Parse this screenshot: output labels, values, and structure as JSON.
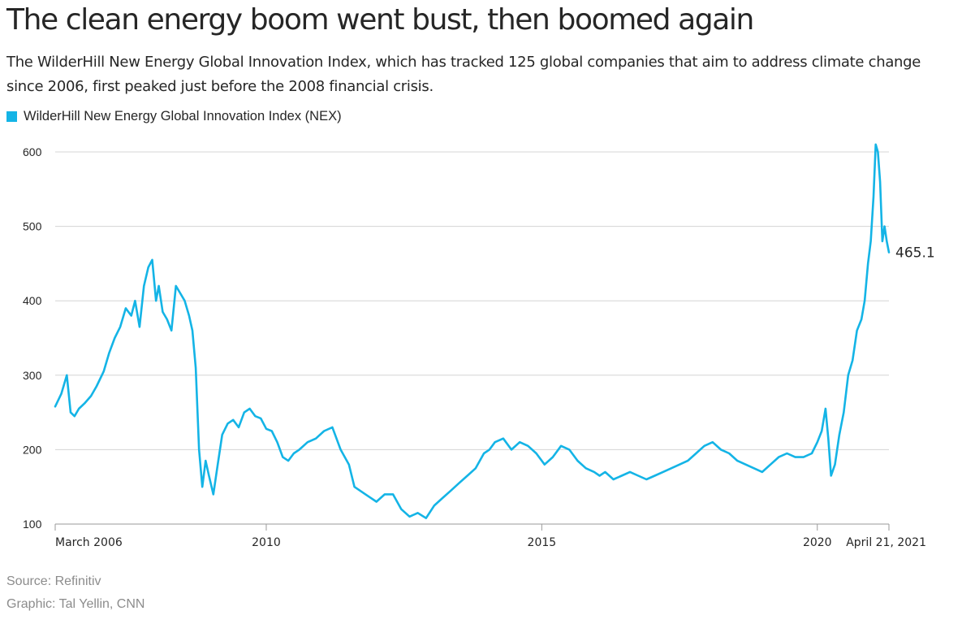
{
  "title": "The clean energy boom went bust, then boomed again",
  "subtitle": "The WilderHill New Energy Global Innovation Index, which has tracked 125 global companies that aim to address climate change since 2006, first peaked just before the 2008 financial crisis.",
  "source": "Source: Refinitiv",
  "credit": "Graphic: Tal Yellin, CNN",
  "colors": {
    "series": "#14b4e6",
    "grid": "#d4d4d4",
    "text": "#262626",
    "muted": "#8c8c8c"
  },
  "chart_data": {
    "type": "line",
    "title": "The clean energy boom went bust, then boomed again",
    "xlabel": "",
    "ylabel": "",
    "xlim": [
      2006.17,
      2021.3
    ],
    "ylim": [
      100,
      620
    ],
    "yticks": [
      100,
      200,
      300,
      400,
      500,
      600
    ],
    "ytick_labels": [
      "100",
      "200",
      "300",
      "400",
      "500",
      "600"
    ],
    "xticks": [
      {
        "value": 2006.17,
        "label": "March 2006"
      },
      {
        "value": 2010.0,
        "label": "2010"
      },
      {
        "value": 2015.0,
        "label": "2015"
      },
      {
        "value": 2020.0,
        "label": "2020"
      },
      {
        "value": 2021.3,
        "label": "April 21, 2021"
      }
    ],
    "grid": true,
    "legend": {
      "position": "top-left",
      "entries": [
        "WilderHill New Energy Global Innovation Index (NEX)"
      ]
    },
    "end_label": "465.1",
    "series": [
      {
        "name": "WilderHill New Energy Global Innovation Index (NEX)",
        "x": [
          2006.17,
          2006.28,
          2006.38,
          2006.45,
          2006.52,
          2006.6,
          2006.7,
          2006.82,
          2006.92,
          2007.05,
          2007.15,
          2007.25,
          2007.35,
          2007.45,
          2007.55,
          2007.62,
          2007.7,
          2007.78,
          2007.86,
          2007.93,
          2008.0,
          2008.05,
          2008.12,
          2008.2,
          2008.28,
          2008.36,
          2008.44,
          2008.52,
          2008.6,
          2008.66,
          2008.72,
          2008.78,
          2008.84,
          2008.9,
          2008.96,
          2009.04,
          2009.12,
          2009.2,
          2009.3,
          2009.4,
          2009.5,
          2009.6,
          2009.7,
          2009.8,
          2009.9,
          2010.0,
          2010.1,
          2010.2,
          2010.3,
          2010.4,
          2010.5,
          2010.6,
          2010.75,
          2010.9,
          2011.05,
          2011.2,
          2011.35,
          2011.5,
          2011.6,
          2011.7,
          2011.8,
          2011.9,
          2012.0,
          2012.15,
          2012.3,
          2012.45,
          2012.6,
          2012.75,
          2012.9,
          2013.05,
          2013.2,
          2013.35,
          2013.5,
          2013.65,
          2013.8,
          2013.95,
          2014.05,
          2014.15,
          2014.3,
          2014.45,
          2014.6,
          2014.75,
          2014.9,
          2015.05,
          2015.2,
          2015.35,
          2015.5,
          2015.65,
          2015.8,
          2015.95,
          2016.05,
          2016.15,
          2016.3,
          2016.45,
          2016.6,
          2016.75,
          2016.9,
          2017.05,
          2017.2,
          2017.35,
          2017.5,
          2017.65,
          2017.8,
          2017.95,
          2018.1,
          2018.25,
          2018.4,
          2018.55,
          2018.7,
          2018.85,
          2019.0,
          2019.15,
          2019.3,
          2019.45,
          2019.6,
          2019.75,
          2019.9,
          2020.0,
          2020.08,
          2020.15,
          2020.2,
          2020.25,
          2020.32,
          2020.4,
          2020.48,
          2020.56,
          2020.64,
          2020.72,
          2020.8,
          2020.86,
          2020.92,
          2020.97,
          2021.02,
          2021.06,
          2021.1,
          2021.14,
          2021.18,
          2021.22,
          2021.26,
          2021.3
        ],
        "values": [
          258,
          275,
          300,
          250,
          245,
          255,
          262,
          272,
          285,
          305,
          330,
          350,
          365,
          390,
          380,
          400,
          365,
          420,
          445,
          455,
          400,
          420,
          385,
          375,
          360,
          420,
          410,
          400,
          380,
          360,
          310,
          200,
          150,
          185,
          165,
          140,
          180,
          220,
          235,
          240,
          230,
          250,
          255,
          245,
          242,
          228,
          225,
          210,
          190,
          185,
          195,
          200,
          210,
          215,
          225,
          230,
          200,
          180,
          150,
          145,
          140,
          135,
          130,
          140,
          140,
          120,
          110,
          115,
          108,
          125,
          135,
          145,
          155,
          165,
          175,
          195,
          200,
          210,
          215,
          200,
          210,
          205,
          195,
          180,
          190,
          205,
          200,
          185,
          175,
          170,
          165,
          170,
          160,
          165,
          170,
          165,
          160,
          165,
          170,
          175,
          180,
          185,
          195,
          205,
          210,
          200,
          195,
          185,
          180,
          175,
          170,
          180,
          190,
          195,
          190,
          190,
          195,
          210,
          225,
          255,
          215,
          165,
          180,
          220,
          250,
          300,
          320,
          360,
          375,
          400,
          450,
          480,
          540,
          610,
          600,
          560,
          480,
          500,
          480,
          465.1
        ]
      }
    ]
  }
}
